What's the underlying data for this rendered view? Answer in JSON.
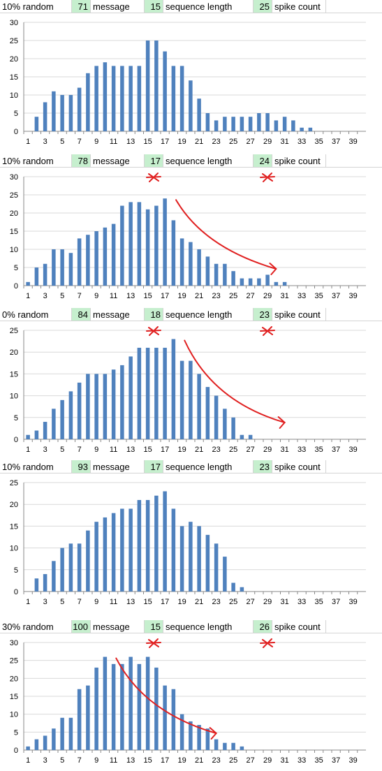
{
  "colors": {
    "bar": "#4f81bd",
    "grid": "#d9d9d9",
    "annotation": "#e02020",
    "highlight": "#c6efce"
  },
  "panels": [
    {
      "random_label": "10% random",
      "message_value": "71",
      "message_label": "message",
      "seq_value": "15",
      "seq_label": "sequence length",
      "spike_value": "25",
      "spike_label": "spike count",
      "marks": []
    },
    {
      "random_label": "10% random",
      "message_value": "78",
      "message_label": "message",
      "seq_value": "17",
      "seq_label": "sequence length",
      "spike_value": "24",
      "spike_label": "spike count",
      "marks": [
        "x-seq",
        "x-spike",
        "arrow"
      ]
    },
    {
      "random_label": "0% random",
      "message_value": "84",
      "message_label": "message",
      "seq_value": "18",
      "seq_label": "sequence length",
      "spike_value": "23",
      "spike_label": "spike count",
      "marks": [
        "x-seq",
        "x-spike",
        "arrow"
      ]
    },
    {
      "random_label": "10% random",
      "message_value": "93",
      "message_label": "message",
      "seq_value": "17",
      "seq_label": "sequence length",
      "spike_value": "23",
      "spike_label": "spike count",
      "marks": []
    },
    {
      "random_label": "30% random",
      "message_value": "100",
      "message_label": "message",
      "seq_value": "15",
      "seq_label": "sequence length",
      "spike_value": "26",
      "spike_label": "spike count",
      "marks": [
        "x-seq",
        "x-spike",
        "arrow"
      ]
    }
  ],
  "chart_data": [
    {
      "type": "bar",
      "title": "",
      "xlabel": "",
      "ylabel": "",
      "ylim": [
        0,
        30
      ],
      "yticks": [
        0,
        5,
        10,
        15,
        20,
        25,
        30
      ],
      "grid": true,
      "x": [
        1,
        2,
        3,
        4,
        5,
        6,
        7,
        8,
        9,
        10,
        11,
        12,
        13,
        14,
        15,
        16,
        17,
        18,
        19,
        20,
        21,
        22,
        23,
        24,
        25,
        26,
        27,
        28,
        29,
        30,
        31,
        32,
        33,
        34,
        35,
        36,
        37,
        38,
        39,
        40
      ],
      "x_tick_labels": [
        "1",
        "3",
        "5",
        "7",
        "9",
        "11",
        "13",
        "15",
        "17",
        "19",
        "21",
        "23",
        "25",
        "27",
        "29",
        "31",
        "33",
        "35",
        "37",
        "39"
      ],
      "values": [
        0,
        4,
        8,
        11,
        10,
        10,
        12,
        16,
        18,
        19,
        18,
        18,
        18,
        18,
        25,
        25,
        22,
        18,
        18,
        14,
        9,
        5,
        3,
        4,
        4,
        4,
        4,
        5,
        5,
        3,
        4,
        3,
        1,
        1,
        0,
        0,
        0,
        0,
        0,
        0
      ]
    },
    {
      "type": "bar",
      "title": "",
      "xlabel": "",
      "ylabel": "",
      "ylim": [
        0,
        30
      ],
      "yticks": [
        0,
        5,
        10,
        15,
        20,
        25,
        30
      ],
      "grid": true,
      "x": [
        1,
        2,
        3,
        4,
        5,
        6,
        7,
        8,
        9,
        10,
        11,
        12,
        13,
        14,
        15,
        16,
        17,
        18,
        19,
        20,
        21,
        22,
        23,
        24,
        25,
        26,
        27,
        28,
        29,
        30,
        31,
        32,
        33,
        34,
        35,
        36,
        37,
        38,
        39,
        40
      ],
      "x_tick_labels": [
        "1",
        "3",
        "5",
        "7",
        "9",
        "11",
        "13",
        "15",
        "17",
        "19",
        "21",
        "23",
        "25",
        "27",
        "29",
        "31",
        "33",
        "35",
        "37",
        "39"
      ],
      "values": [
        1,
        5,
        6,
        10,
        10,
        9,
        13,
        14,
        15,
        16,
        17,
        22,
        23,
        23,
        21,
        22,
        24,
        18,
        13,
        12,
        10,
        8,
        6,
        6,
        4,
        2,
        2,
        2,
        3,
        1,
        1,
        0,
        0,
        0,
        0,
        0,
        0,
        0,
        0,
        0
      ]
    },
    {
      "type": "bar",
      "title": "",
      "xlabel": "",
      "ylabel": "",
      "ylim": [
        0,
        25
      ],
      "yticks": [
        0,
        5,
        10,
        15,
        20,
        25
      ],
      "grid": true,
      "x": [
        1,
        2,
        3,
        4,
        5,
        6,
        7,
        8,
        9,
        10,
        11,
        12,
        13,
        14,
        15,
        16,
        17,
        18,
        19,
        20,
        21,
        22,
        23,
        24,
        25,
        26,
        27,
        28,
        29,
        30,
        31,
        32,
        33,
        34,
        35,
        36,
        37,
        38,
        39,
        40
      ],
      "x_tick_labels": [
        "1",
        "3",
        "5",
        "7",
        "9",
        "11",
        "13",
        "15",
        "17",
        "19",
        "21",
        "23",
        "25",
        "27",
        "29",
        "31",
        "33",
        "35",
        "37",
        "39"
      ],
      "values": [
        1,
        2,
        4,
        7,
        9,
        11,
        13,
        15,
        15,
        15,
        16,
        17,
        19,
        21,
        21,
        21,
        21,
        23,
        18,
        18,
        15,
        12,
        10,
        7,
        5,
        1,
        1,
        0,
        0,
        0,
        0,
        0,
        0,
        0,
        0,
        0,
        0,
        0,
        0,
        0
      ]
    },
    {
      "type": "bar",
      "title": "",
      "xlabel": "",
      "ylabel": "",
      "ylim": [
        0,
        25
      ],
      "yticks": [
        0,
        5,
        10,
        15,
        20,
        25
      ],
      "grid": true,
      "x": [
        1,
        2,
        3,
        4,
        5,
        6,
        7,
        8,
        9,
        10,
        11,
        12,
        13,
        14,
        15,
        16,
        17,
        18,
        19,
        20,
        21,
        22,
        23,
        24,
        25,
        26,
        27,
        28,
        29,
        30,
        31,
        32,
        33,
        34,
        35,
        36,
        37,
        38,
        39,
        40
      ],
      "x_tick_labels": [
        "1",
        "3",
        "5",
        "7",
        "9",
        "11",
        "13",
        "15",
        "17",
        "19",
        "21",
        "23",
        "25",
        "27",
        "29",
        "31",
        "33",
        "35",
        "37",
        "39"
      ],
      "values": [
        0,
        3,
        4,
        7,
        10,
        11,
        11,
        14,
        16,
        17,
        18,
        19,
        19,
        21,
        21,
        22,
        23,
        19,
        15,
        16,
        15,
        13,
        11,
        8,
        2,
        1,
        0,
        0,
        0,
        0,
        0,
        0,
        0,
        0,
        0,
        0,
        0,
        0,
        0,
        0
      ]
    },
    {
      "type": "bar",
      "title": "",
      "xlabel": "",
      "ylabel": "",
      "ylim": [
        0,
        30
      ],
      "yticks": [
        0,
        5,
        10,
        15,
        20,
        25,
        30
      ],
      "grid": true,
      "x": [
        1,
        2,
        3,
        4,
        5,
        6,
        7,
        8,
        9,
        10,
        11,
        12,
        13,
        14,
        15,
        16,
        17,
        18,
        19,
        20,
        21,
        22,
        23,
        24,
        25,
        26,
        27,
        28,
        29,
        30,
        31,
        32,
        33,
        34,
        35,
        36,
        37,
        38,
        39,
        40
      ],
      "x_tick_labels": [
        "1",
        "3",
        "5",
        "7",
        "9",
        "11",
        "13",
        "15",
        "17",
        "19",
        "21",
        "23",
        "25",
        "27",
        "29",
        "31",
        "33",
        "35",
        "37",
        "39"
      ],
      "values": [
        1,
        3,
        4,
        6,
        9,
        9,
        17,
        18,
        23,
        26,
        24,
        24,
        26,
        24,
        26,
        23,
        18,
        17,
        10,
        8,
        7,
        6,
        3,
        2,
        2,
        1,
        0,
        0,
        0,
        0,
        0,
        0,
        0,
        0,
        0,
        0,
        0,
        0,
        0,
        0
      ]
    }
  ]
}
